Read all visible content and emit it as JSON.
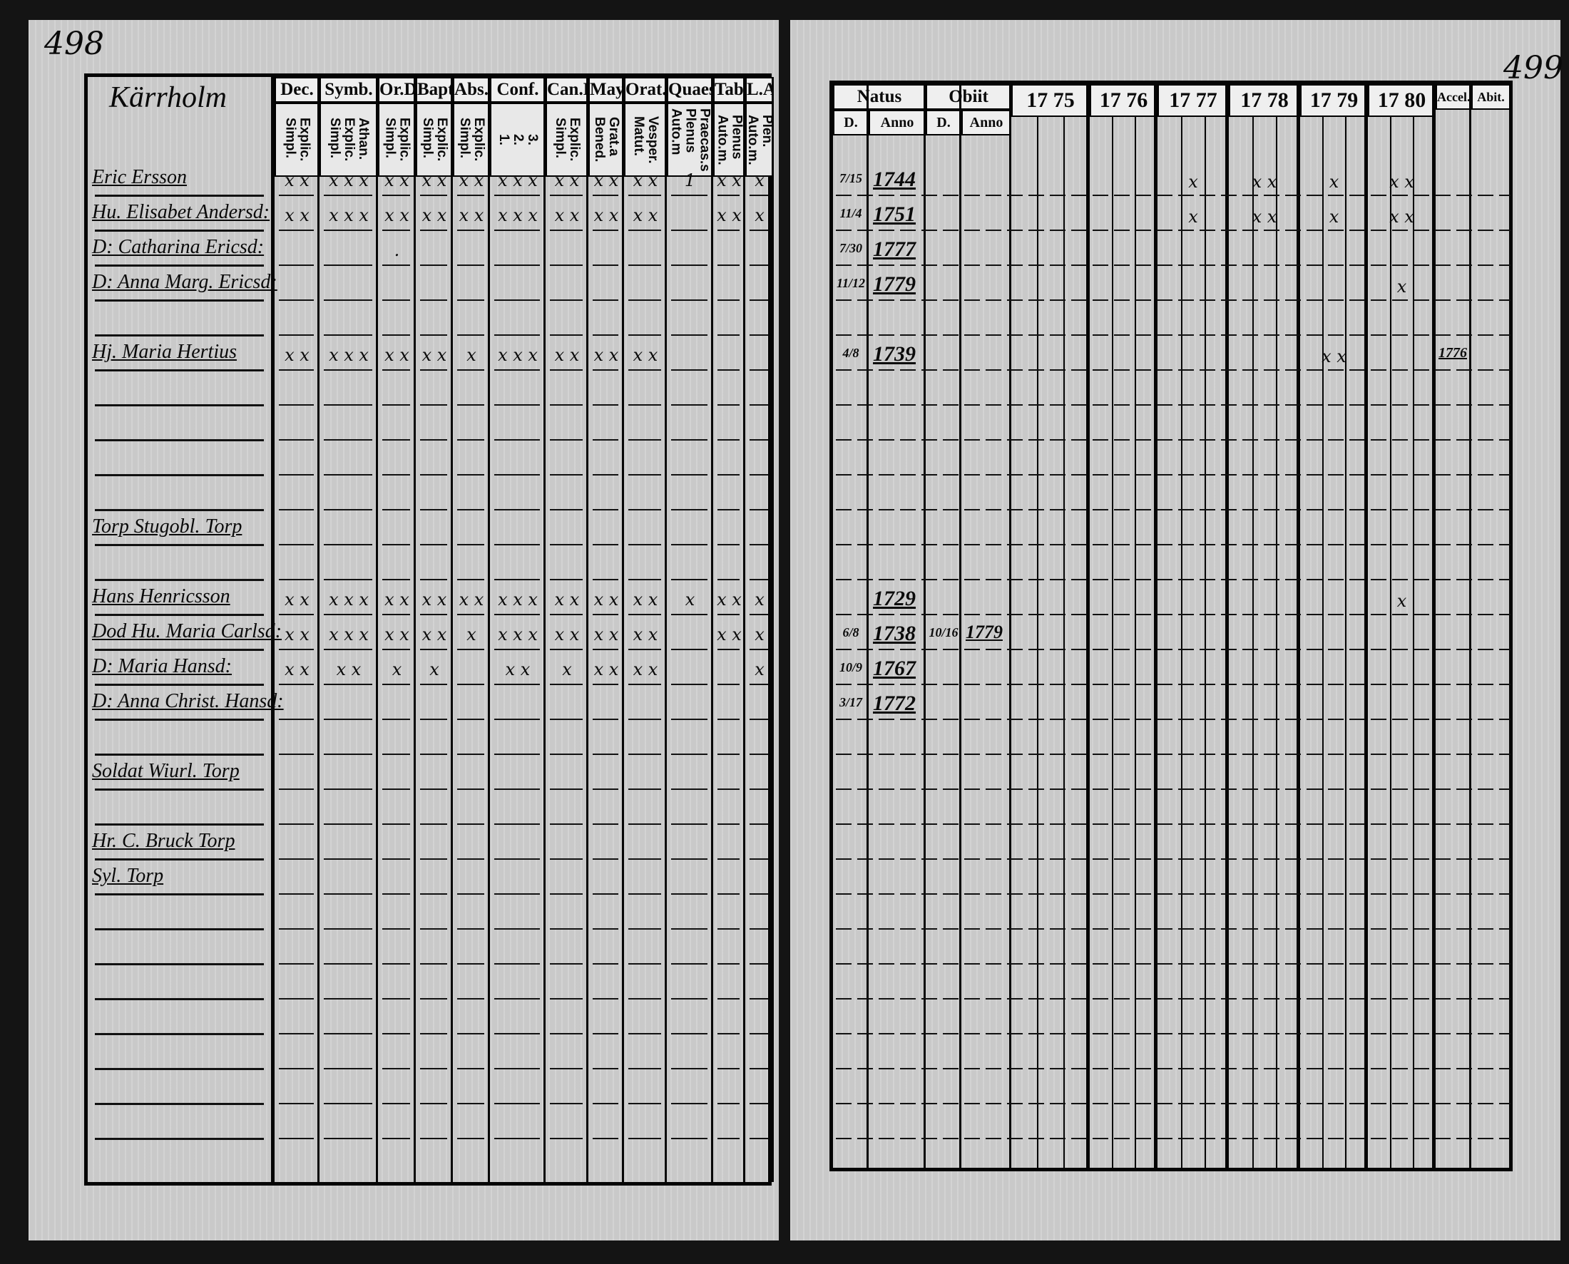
{
  "left_page": {
    "page_number": "498",
    "place": "Kärrholm",
    "columns": [
      {
        "head": "Dec.",
        "sub": "Explic.\nSimpl."
      },
      {
        "head": "Symb.",
        "sub": "Athan.\nExplic.\nSimpl."
      },
      {
        "head": "Or.D",
        "sub": "Explic.\nSimpl."
      },
      {
        "head": "Bapt.",
        "sub": "Explic.\nSimpl."
      },
      {
        "head": "Abs.",
        "sub": "Explic.\nSimpl."
      },
      {
        "head": "Conf.",
        "sub": "3.\n2.\n1."
      },
      {
        "head": "Can.D",
        "sub": "Explic.\nSimpl."
      },
      {
        "head": "Mays.",
        "sub": "Grat.a\nBened."
      },
      {
        "head": "Orat.",
        "sub": "Vesper.\nMatut."
      },
      {
        "head": "Quaest.",
        "sub": "Praecas.s\nPlenus\nAuto.m"
      },
      {
        "head": "Tabac",
        "sub": "Plenus\nAuto.m."
      },
      {
        "head": "L.A",
        "sub": "Plen.\nAuto.m."
      }
    ],
    "rows": [
      {
        "name": "Eric Ersson",
        "marks": [
          "x x",
          "x x x",
          "x x",
          "x x",
          "x x",
          "x x x",
          "x x",
          "x x",
          "x x",
          "1",
          "x x",
          "x"
        ]
      },
      {
        "name": "Hu. Elisabet Andersd:",
        "marks": [
          "x x",
          "x x x",
          "x x",
          "x x",
          "x x",
          "x x x",
          "x x",
          "x x",
          "x x",
          "",
          "x x",
          "x"
        ]
      },
      {
        "name": "D: Catharina Ericsd:",
        "marks": [
          "",
          "",
          ".",
          "",
          "",
          "",
          "",
          "",
          "",
          "",
          "",
          ""
        ]
      },
      {
        "name": "D: Anna Marg. Ericsd:",
        "marks": [
          "",
          "",
          "",
          "",
          "",
          "",
          "",
          "",
          "",
          "",
          "",
          ""
        ]
      },
      {
        "name": "",
        "marks": []
      },
      {
        "name": "Hj. Maria Hertius",
        "marks": [
          "x x",
          "x x x",
          "x x",
          "x x",
          "x",
          "x x x",
          "x x",
          "x x",
          "x x",
          "",
          "",
          ""
        ]
      },
      {
        "name": "",
        "marks": []
      },
      {
        "name": "",
        "marks": []
      },
      {
        "name": "",
        "marks": []
      },
      {
        "name": "",
        "marks": []
      },
      {
        "name": "Torp Stugobl. Torp",
        "marks": []
      },
      {
        "name": "",
        "marks": []
      },
      {
        "name": "Hans Henricsson",
        "marks": [
          "x x",
          "x x x",
          "x x",
          "x x",
          "x x",
          "x x x",
          "x x",
          "x x",
          "x x",
          "x",
          "x x",
          "x"
        ]
      },
      {
        "name": "Dod Hu. Maria Carlsd:",
        "marks": [
          "x x",
          "x x x",
          "x x",
          "x x",
          "x",
          "x x x",
          "x x",
          "x x",
          "x x",
          "",
          "x x",
          "x"
        ]
      },
      {
        "name": "D: Maria Hansd:",
        "marks": [
          "x x",
          "x x",
          "x",
          "x",
          "",
          "x x",
          "x",
          "x x",
          "x x",
          "",
          "",
          "x"
        ]
      },
      {
        "name": "D: Anna Christ. Hansd:",
        "marks": []
      },
      {
        "name": "",
        "marks": []
      },
      {
        "name": "Soldat Wiurl. Torp",
        "marks": []
      },
      {
        "name": "",
        "marks": []
      },
      {
        "name": "Hr. C. Bruck Torp",
        "marks": []
      },
      {
        "name": "Syl. Torp",
        "marks": []
      }
    ]
  },
  "right_page": {
    "page_number": "499",
    "headers": {
      "natus": "Natus",
      "obiit": "Obiit",
      "d": "D.",
      "anno": "Anno",
      "accel": "Accel.",
      "abit": "Abit."
    },
    "years": [
      "17 75",
      "17 76",
      "17 77",
      "17 78",
      "17 79",
      "17 80"
    ],
    "rows": [
      {
        "natus_d": "7/15",
        "natus_anno": "1744",
        "obiit_d": "",
        "obiit_anno": "",
        "year_marks": [
          "",
          "",
          "x",
          "x  x",
          "x",
          "x  x"
        ],
        "accel": ""
      },
      {
        "natus_d": "11/4",
        "natus_anno": "1751",
        "obiit_d": "",
        "obiit_anno": "",
        "year_marks": [
          "",
          "",
          "x",
          "x  x",
          "x",
          "x  x"
        ],
        "accel": ""
      },
      {
        "natus_d": "7/30",
        "natus_anno": "1777",
        "obiit_d": "",
        "obiit_anno": "",
        "year_marks": [
          "",
          "",
          "",
          "",
          "",
          ""
        ],
        "accel": ""
      },
      {
        "natus_d": "11/12",
        "natus_anno": "1779",
        "obiit_d": "",
        "obiit_anno": "",
        "year_marks": [
          "",
          "",
          "",
          "",
          "",
          "x"
        ],
        "accel": ""
      },
      {
        "natus_d": "",
        "natus_anno": "",
        "obiit_d": "",
        "obiit_anno": "",
        "year_marks": [],
        "accel": ""
      },
      {
        "natus_d": "4/8",
        "natus_anno": "1739",
        "obiit_d": "",
        "obiit_anno": "",
        "year_marks": [
          "",
          "",
          "",
          "",
          "x  x",
          ""
        ],
        "accel": "1776"
      },
      {},
      {},
      {},
      {},
      {},
      {},
      {
        "natus_d": "",
        "natus_anno": "1729",
        "obiit_d": "",
        "obiit_anno": "",
        "year_marks": [
          "",
          "",
          "",
          "",
          "",
          "x"
        ],
        "accel": ""
      },
      {
        "natus_d": "6/8",
        "natus_anno": "1738",
        "obiit_d": "10/16",
        "obiit_anno": "1779",
        "year_marks": [],
        "accel": ""
      },
      {
        "natus_d": "10/9",
        "natus_anno": "1767",
        "obiit_d": "",
        "obiit_anno": "",
        "year_marks": [],
        "accel": ""
      },
      {
        "natus_d": "3/17",
        "natus_anno": "1772",
        "obiit_d": "",
        "obiit_anno": "",
        "year_marks": [],
        "accel": ""
      }
    ]
  },
  "colors": {
    "paper": "#c9c9c9",
    "ink": "#0a0a0a",
    "background": "#141414"
  }
}
